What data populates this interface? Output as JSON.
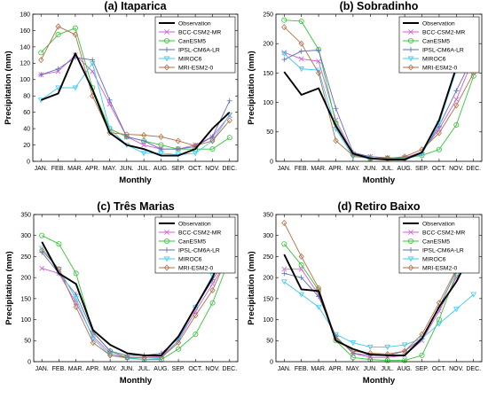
{
  "colors": {
    "Observation": "#000000",
    "BCC-CSM2-MR": "#d35bd9",
    "CanESM5": "#36c43a",
    "IPSL-CM6A-LR": "#5f6fb0",
    "MIROC6": "#3fc8f0",
    "MRI-ESM2-0": "#b07048"
  },
  "markers": {
    "Observation": "none",
    "BCC-CSM2-MR": "x-cross",
    "CanESM5": "circle",
    "IPSL-CM6A-LR": "plus",
    "MIROC6": "triangle-down",
    "MRI-ESM2-0": "diamond"
  },
  "chart_data": [
    {
      "type": "line",
      "title": "(a) Itaparica",
      "xlabel": "Monthly",
      "ylabel": "Precipitation (mm)",
      "categories": [
        "JAN.",
        "FEB.",
        "MAR.",
        "APR.",
        "MAY.",
        "JUN.",
        "JUL.",
        "AUG.",
        "SEP.",
        "OCT.",
        "NOV.",
        "DEC."
      ],
      "ylim": [
        0,
        180
      ],
      "yticks": [
        0,
        20,
        40,
        60,
        80,
        100,
        120,
        140,
        160,
        180
      ],
      "legend": "top-right",
      "series": [
        {
          "name": "Observation",
          "values": [
            75,
            83,
            132,
            88,
            35,
            20,
            15,
            7,
            7,
            15,
            40,
            60
          ]
        },
        {
          "name": "BCC-CSM2-MR",
          "values": [
            106,
            110,
            130,
            110,
            70,
            30,
            20,
            15,
            15,
            20,
            30,
            56
          ]
        },
        {
          "name": "CanESM5",
          "values": [
            133,
            155,
            163,
            90,
            40,
            30,
            25,
            20,
            15,
            15,
            15,
            29
          ]
        },
        {
          "name": "IPSL-CM6A-LR",
          "values": [
            106,
            113,
            127,
            124,
            75,
            30,
            25,
            15,
            15,
            18,
            30,
            74
          ]
        },
        {
          "name": "MIROC6",
          "values": [
            75,
            90,
            90,
            120,
            40,
            20,
            10,
            10,
            8,
            10,
            25,
            57
          ]
        },
        {
          "name": "MRI-ESM2-0",
          "values": [
            124,
            165,
            155,
            80,
            35,
            33,
            32,
            30,
            25,
            19,
            25,
            50
          ]
        }
      ]
    },
    {
      "type": "line",
      "title": "(b) Sobradinho",
      "xlabel": "Monthly",
      "ylabel": "Precipitation (mm)",
      "categories": [
        "JAN.",
        "FEB.",
        "MAR.",
        "APR.",
        "MAY.",
        "JUN.",
        "JUL.",
        "AUG.",
        "SEP.",
        "OCT.",
        "NOV.",
        "DEC."
      ],
      "ylim": [
        0,
        250
      ],
      "yticks": [
        0,
        50,
        100,
        150,
        200,
        250
      ],
      "legend": "top-right",
      "series": [
        {
          "name": "Observation",
          "values": [
            152,
            113,
            124,
            60,
            13,
            5,
            3,
            3,
            15,
            70,
            160,
            200
          ]
        },
        {
          "name": "BCC-CSM2-MR",
          "values": [
            185,
            174,
            170,
            70,
            13,
            8,
            6,
            6,
            16,
            55,
            105,
            175
          ]
        },
        {
          "name": "CanESM5",
          "values": [
            240,
            238,
            190,
            65,
            12,
            4,
            5,
            5,
            10,
            20,
            62,
            145
          ]
        },
        {
          "name": "IPSL-CM6A-LR",
          "values": [
            173,
            187,
            189,
            90,
            15,
            8,
            6,
            6,
            14,
            60,
            120,
            180
          ]
        },
        {
          "name": "MIROC6",
          "values": [
            183,
            157,
            155,
            55,
            8,
            5,
            4,
            4,
            12,
            65,
            155,
            184
          ]
        },
        {
          "name": "MRI-ESM2-0",
          "values": [
            228,
            200,
            150,
            35,
            10,
            5,
            5,
            8,
            20,
            48,
            95,
            150
          ]
        }
      ]
    },
    {
      "type": "line",
      "title": "(c) Três Marias",
      "xlabel": "Monthly",
      "ylabel": "Precipitation (mm)",
      "categories": [
        "JAN.",
        "FEB.",
        "MAR.",
        "APR.",
        "MAY.",
        "JUN.",
        "JUL.",
        "AUG.",
        "SEP.",
        "OCT.",
        "NOV.",
        "DEC."
      ],
      "ylim": [
        0,
        350
      ],
      "yticks": [
        0,
        50,
        100,
        150,
        200,
        250,
        300,
        350
      ],
      "legend": "top-right",
      "series": [
        {
          "name": "Observation",
          "values": [
            285,
            210,
            185,
            75,
            40,
            20,
            15,
            15,
            60,
            130,
            200,
            300
          ]
        },
        {
          "name": "BCC-CSM2-MR",
          "values": [
            222,
            210,
            140,
            60,
            20,
            10,
            10,
            12,
            50,
            120,
            185,
            250
          ]
        },
        {
          "name": "CanESM5",
          "values": [
            300,
            280,
            210,
            70,
            25,
            10,
            5,
            5,
            30,
            65,
            140,
            245
          ]
        },
        {
          "name": "IPSL-CM6A-LR",
          "values": [
            260,
            210,
            160,
            70,
            25,
            15,
            15,
            20,
            55,
            130,
            195,
            255
          ]
        },
        {
          "name": "MIROC6",
          "values": [
            270,
            220,
            150,
            55,
            15,
            8,
            5,
            8,
            50,
            130,
            205,
            265
          ]
        },
        {
          "name": "MRI-ESM2-0",
          "values": [
            265,
            220,
            130,
            45,
            15,
            10,
            10,
            10,
            45,
            110,
            170,
            260
          ]
        }
      ]
    },
    {
      "type": "line",
      "title": "(d) Retiro Baixo",
      "xlabel": "Monthly",
      "ylabel": "Precipitation (mm)",
      "categories": [
        "JAN.",
        "FEB.",
        "MAR.",
        "APR.",
        "MAY.",
        "JUN.",
        "JUL.",
        "AUG.",
        "SEP.",
        "OCT.",
        "NOV.",
        "DEC."
      ],
      "ylim": [
        0,
        350
      ],
      "yticks": [
        0,
        50,
        100,
        150,
        200,
        250,
        300,
        350
      ],
      "legend": "top-right",
      "series": [
        {
          "name": "Observation",
          "values": [
            255,
            172,
            168,
            50,
            30,
            17,
            15,
            15,
            55,
            130,
            190,
            270
          ]
        },
        {
          "name": "BCC-CSM2-MR",
          "values": [
            220,
            220,
            160,
            60,
            20,
            10,
            10,
            15,
            50,
            120,
            200,
            265
          ]
        },
        {
          "name": "CanESM5",
          "values": [
            280,
            230,
            170,
            50,
            10,
            5,
            3,
            3,
            15,
            100,
            210,
            335
          ]
        },
        {
          "name": "IPSL-CM6A-LR",
          "values": [
            210,
            200,
            155,
            60,
            20,
            15,
            15,
            25,
            55,
            130,
            215,
            285
          ]
        },
        {
          "name": "MIROC6",
          "values": [
            190,
            160,
            130,
            65,
            45,
            35,
            35,
            40,
            55,
            90,
            125,
            160
          ]
        },
        {
          "name": "MRI-ESM2-0",
          "values": [
            330,
            250,
            175,
            55,
            25,
            20,
            18,
            25,
            65,
            140,
            220,
            330
          ]
        }
      ]
    }
  ]
}
